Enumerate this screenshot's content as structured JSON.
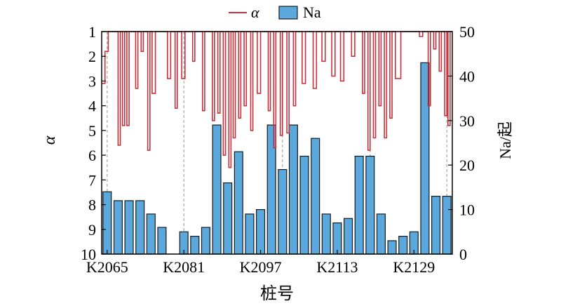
{
  "chart_data": {
    "type": "bar",
    "title": "",
    "xlabel": "桩号",
    "ylabel_left": "α",
    "ylabel_right": "Na/起",
    "ylim_left": [
      10,
      1
    ],
    "ylim_right": [
      0,
      50
    ],
    "yticks_left": [
      "1",
      "2",
      "3",
      "4",
      "5",
      "6",
      "7",
      "8",
      "9",
      "10"
    ],
    "yticks_right": [
      "0",
      "10",
      "20",
      "30",
      "40",
      "50"
    ],
    "xticks": [
      "K2065",
      "K2081",
      "K2097",
      "K2113",
      "K2129"
    ],
    "legend": {
      "position": "top-center",
      "line_label": "α",
      "bar_label": "Na"
    },
    "colors": {
      "line": "#c8323c",
      "bar": "#5aa8dc",
      "bar_edge": "#1a1a1a",
      "grid": "#999999"
    },
    "bar_series": {
      "name": "Na",
      "values": [
        14,
        12,
        12,
        12,
        9,
        6,
        0,
        5,
        4,
        6,
        29,
        16,
        23,
        9,
        10,
        29,
        19,
        29,
        22,
        26,
        9,
        7,
        8,
        22,
        22,
        9,
        3,
        4,
        5,
        43,
        13,
        13
      ]
    },
    "line_series": {
      "name": "α",
      "x_start": 0.0,
      "x_end": 32.0,
      "points": [
        [
          0,
          3.1
        ],
        [
          0.3,
          3.1
        ],
        [
          0.3,
          1.8
        ],
        [
          0.6,
          1.8
        ],
        [
          0.6,
          1
        ],
        [
          1.5,
          1
        ],
        [
          1.5,
          5.6
        ],
        [
          1.7,
          5.6
        ],
        [
          1.7,
          1
        ],
        [
          1.9,
          1
        ],
        [
          1.9,
          4.8
        ],
        [
          2.1,
          4.8
        ],
        [
          2.1,
          1
        ],
        [
          2.3,
          1
        ],
        [
          2.3,
          4.8
        ],
        [
          2.5,
          4.8
        ],
        [
          2.5,
          1
        ],
        [
          3.1,
          1
        ],
        [
          3.1,
          3.3
        ],
        [
          3.3,
          3.3
        ],
        [
          3.3,
          1
        ],
        [
          3.6,
          1
        ],
        [
          3.6,
          1.8
        ],
        [
          3.8,
          1.8
        ],
        [
          3.8,
          1
        ],
        [
          4.2,
          1
        ],
        [
          4.2,
          5.8
        ],
        [
          4.4,
          5.8
        ],
        [
          4.4,
          1
        ],
        [
          4.6,
          1
        ],
        [
          4.6,
          3.5
        ],
        [
          4.9,
          3.5
        ],
        [
          4.9,
          1
        ],
        [
          6.0,
          1
        ],
        [
          6.0,
          2.9
        ],
        [
          6.3,
          2.9
        ],
        [
          6.3,
          1
        ],
        [
          6.7,
          1
        ],
        [
          6.7,
          4.1
        ],
        [
          6.9,
          4.1
        ],
        [
          6.9,
          1
        ],
        [
          7.3,
          1
        ],
        [
          7.3,
          2.9
        ],
        [
          7.6,
          2.9
        ],
        [
          7.6,
          1
        ],
        [
          8.3,
          1
        ],
        [
          8.3,
          2.2
        ],
        [
          8.5,
          2.2
        ],
        [
          8.5,
          1
        ],
        [
          9.2,
          1
        ],
        [
          9.2,
          4.2
        ],
        [
          9.4,
          4.2
        ],
        [
          9.4,
          1
        ],
        [
          10.1,
          1
        ],
        [
          10.1,
          4.6
        ],
        [
          10.3,
          4.6
        ],
        [
          10.3,
          1
        ],
        [
          10.6,
          1
        ],
        [
          10.6,
          4.3
        ],
        [
          10.8,
          4.3
        ],
        [
          10.8,
          1
        ],
        [
          11.1,
          1
        ],
        [
          11.1,
          6.0
        ],
        [
          11.3,
          6.0
        ],
        [
          11.3,
          1
        ],
        [
          11.6,
          1
        ],
        [
          11.6,
          6.5
        ],
        [
          11.8,
          6.5
        ],
        [
          11.8,
          1
        ],
        [
          12.0,
          1
        ],
        [
          12.0,
          5.3
        ],
        [
          12.2,
          5.3
        ],
        [
          12.2,
          1
        ],
        [
          12.5,
          1
        ],
        [
          12.5,
          4.5
        ],
        [
          12.7,
          4.5
        ],
        [
          12.7,
          1
        ],
        [
          13.0,
          1
        ],
        [
          13.0,
          4.0
        ],
        [
          13.2,
          4.0
        ],
        [
          13.2,
          1
        ],
        [
          13.6,
          1
        ],
        [
          13.6,
          5.0
        ],
        [
          13.8,
          5.0
        ],
        [
          13.8,
          1
        ],
        [
          14.2,
          1
        ],
        [
          14.2,
          3.5
        ],
        [
          14.5,
          3.5
        ],
        [
          14.5,
          1
        ],
        [
          15.2,
          1
        ],
        [
          15.2,
          4.2
        ],
        [
          15.4,
          4.2
        ],
        [
          15.4,
          1
        ],
        [
          15.7,
          1
        ],
        [
          15.7,
          5.7
        ],
        [
          15.9,
          5.7
        ],
        [
          15.9,
          1
        ],
        [
          16.3,
          1
        ],
        [
          16.3,
          5.2
        ],
        [
          16.5,
          5.2
        ],
        [
          16.5,
          1
        ],
        [
          16.9,
          1
        ],
        [
          16.9,
          5.1
        ],
        [
          17.1,
          5.1
        ],
        [
          17.1,
          1
        ],
        [
          17.5,
          1
        ],
        [
          17.5,
          4.0
        ],
        [
          17.7,
          4.0
        ],
        [
          17.7,
          1
        ],
        [
          18.3,
          1
        ],
        [
          18.3,
          3.1
        ],
        [
          18.6,
          3.1
        ],
        [
          18.6,
          1
        ],
        [
          19.3,
          1
        ],
        [
          19.3,
          3.3
        ],
        [
          19.6,
          3.3
        ],
        [
          19.6,
          1
        ],
        [
          20.1,
          1
        ],
        [
          20.1,
          2.2
        ],
        [
          20.4,
          2.2
        ],
        [
          20.4,
          1
        ],
        [
          21.0,
          1
        ],
        [
          21.0,
          2.8
        ],
        [
          21.3,
          2.8
        ],
        [
          21.3,
          1
        ],
        [
          21.8,
          1
        ],
        [
          21.8,
          3.0
        ],
        [
          22.1,
          3.0
        ],
        [
          22.1,
          1
        ],
        [
          22.8,
          1
        ],
        [
          22.8,
          2.0
        ],
        [
          23.1,
          2.0
        ],
        [
          23.1,
          1
        ],
        [
          23.8,
          1
        ],
        [
          23.8,
          3.5
        ],
        [
          24.0,
          3.5
        ],
        [
          24.0,
          1
        ],
        [
          24.3,
          1
        ],
        [
          24.3,
          5.8
        ],
        [
          24.5,
          5.8
        ],
        [
          24.5,
          1
        ],
        [
          24.8,
          1
        ],
        [
          24.8,
          5.3
        ],
        [
          25.0,
          5.3
        ],
        [
          25.0,
          1
        ],
        [
          25.3,
          1
        ],
        [
          25.3,
          4.0
        ],
        [
          25.5,
          4.0
        ],
        [
          25.5,
          1
        ],
        [
          25.8,
          1
        ],
        [
          25.8,
          5.3
        ],
        [
          26.0,
          5.3
        ],
        [
          26.0,
          1
        ],
        [
          26.3,
          1
        ],
        [
          26.3,
          4.5
        ],
        [
          26.5,
          4.5
        ],
        [
          26.5,
          1
        ],
        [
          26.8,
          1
        ],
        [
          26.8,
          2.9
        ],
        [
          27.3,
          2.9
        ],
        [
          27.3,
          1
        ],
        [
          29.0,
          1
        ],
        [
          29.0,
          1.2
        ],
        [
          29.3,
          1.2
        ],
        [
          29.3,
          1
        ],
        [
          29.8,
          1
        ],
        [
          29.8,
          4.0
        ],
        [
          30.0,
          4.0
        ],
        [
          30.0,
          1
        ],
        [
          30.3,
          1
        ],
        [
          30.3,
          1.7
        ],
        [
          30.5,
          1.7
        ],
        [
          30.5,
          1
        ],
        [
          30.8,
          1
        ],
        [
          30.8,
          2.6
        ],
        [
          31.0,
          2.6
        ],
        [
          31.0,
          1
        ],
        [
          31.3,
          1
        ],
        [
          31.3,
          4.4
        ],
        [
          31.5,
          4.4
        ],
        [
          31.5,
          1
        ],
        [
          31.6,
          1
        ],
        [
          31.6,
          4.8
        ],
        [
          31.8,
          4.8
        ],
        [
          31.8,
          1
        ],
        [
          32.0,
          1
        ]
      ]
    },
    "reference_lines_x": [
      0.5,
      7.5,
      16.5,
      24.5,
      31.5
    ],
    "xtick_positions": [
      0.5,
      7.5,
      14.5,
      21.5,
      28.5
    ]
  }
}
